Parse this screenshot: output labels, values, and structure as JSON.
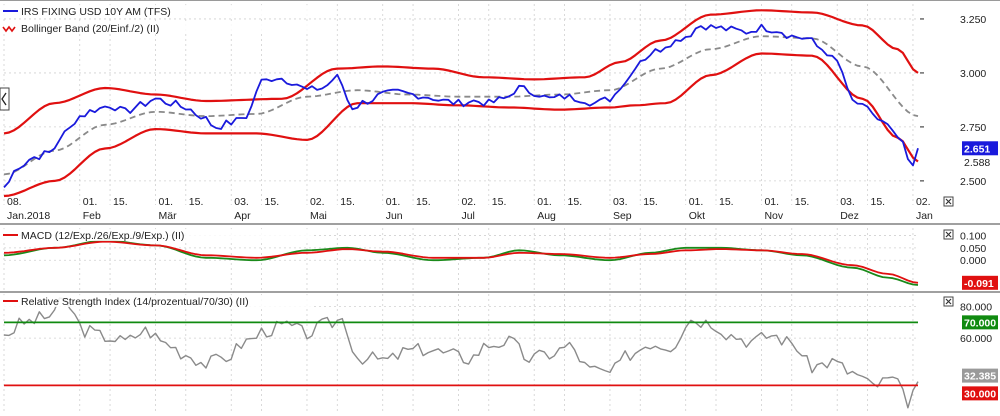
{
  "colors": {
    "background": "#ffffff",
    "grid": "#d0d0d0",
    "price": "#1a1adc",
    "band": "#e01010",
    "middle": "#8a8a8a",
    "macd": "#1a8a1a",
    "signal": "#e01010",
    "rsi": "#8a8a8a",
    "level_hi": "#108a10",
    "level_lo": "#e01010",
    "axis_text": "#222222",
    "panel_border": "#404040"
  },
  "icons": {
    "close": "close-icon",
    "collapse": "chevron-left-icon"
  },
  "chart_data": [
    {
      "type": "line",
      "panel": "price",
      "legend": [
        "IRS FIXING USD 10Y AM (TFS)",
        "Bollinger Band (20/Einf./2) (II)"
      ],
      "y_ticks": [
        "3.250",
        "3.000",
        "2.750",
        "2.500"
      ],
      "ylim": [
        2.43,
        3.31
      ],
      "x_ticks": [
        {
          "top": "08.",
          "bottom": "Jan.2018"
        },
        {
          "top": "01.",
          "bottom": "Feb"
        },
        {
          "top": "15.",
          "bottom": ""
        },
        {
          "top": "01.",
          "bottom": "Mär"
        },
        {
          "top": "15.",
          "bottom": ""
        },
        {
          "top": "03.",
          "bottom": "Apr"
        },
        {
          "top": "15.",
          "bottom": ""
        },
        {
          "top": "02.",
          "bottom": "Mai"
        },
        {
          "top": "15.",
          "bottom": ""
        },
        {
          "top": "01.",
          "bottom": "Jun"
        },
        {
          "top": "15.",
          "bottom": ""
        },
        {
          "top": "02.",
          "bottom": "Jul"
        },
        {
          "top": "15.",
          "bottom": ""
        },
        {
          "top": "01.",
          "bottom": "Aug"
        },
        {
          "top": "15.",
          "bottom": ""
        },
        {
          "top": "03.",
          "bottom": "Sep"
        },
        {
          "top": "15.",
          "bottom": ""
        },
        {
          "top": "01.",
          "bottom": "Okt"
        },
        {
          "top": "15.",
          "bottom": ""
        },
        {
          "top": "01.",
          "bottom": "Nov"
        },
        {
          "top": "15.",
          "bottom": ""
        },
        {
          "top": "03.",
          "bottom": "Dez"
        },
        {
          "top": "15.",
          "bottom": ""
        },
        {
          "top": "02.",
          "bottom": "Jan"
        }
      ],
      "x_positions": [
        0,
        15,
        21,
        30,
        36,
        45,
        51,
        60,
        66,
        75,
        81,
        90,
        96,
        105,
        111,
        120,
        126,
        135,
        141,
        150,
        156,
        165,
        171,
        180
      ],
      "n": 182,
      "series": [
        {
          "name": "IRS FIXING USD 10Y AM (TFS)",
          "anchors": [
            [
              0,
              2.47
            ],
            [
              3,
              2.57
            ],
            [
              6,
              2.61
            ],
            [
              9,
              2.63
            ],
            [
              12,
              2.72
            ],
            [
              15,
              2.8
            ],
            [
              18,
              2.83
            ],
            [
              21,
              2.85
            ],
            [
              24,
              2.82
            ],
            [
              27,
              2.85
            ],
            [
              30,
              2.88
            ],
            [
              33,
              2.86
            ],
            [
              36,
              2.84
            ],
            [
              39,
              2.8
            ],
            [
              42,
              2.75
            ],
            [
              45,
              2.77
            ],
            [
              48,
              2.8
            ],
            [
              51,
              2.96
            ],
            [
              54,
              2.98
            ],
            [
              57,
              2.96
            ],
            [
              60,
              2.92
            ],
            [
              63,
              2.93
            ],
            [
              66,
              2.98
            ],
            [
              69,
              2.84
            ],
            [
              72,
              2.87
            ],
            [
              75,
              2.9
            ],
            [
              78,
              2.91
            ],
            [
              81,
              2.9
            ],
            [
              84,
              2.89
            ],
            [
              87,
              2.87
            ],
            [
              90,
              2.86
            ],
            [
              93,
              2.87
            ],
            [
              96,
              2.86
            ],
            [
              99,
              2.88
            ],
            [
              102,
              2.93
            ],
            [
              105,
              2.91
            ],
            [
              108,
              2.88
            ],
            [
              111,
              2.89
            ],
            [
              114,
              2.88
            ],
            [
              117,
              2.86
            ],
            [
              120,
              2.88
            ],
            [
              123,
              2.96
            ],
            [
              126,
              3.06
            ],
            [
              129,
              3.1
            ],
            [
              132,
              3.14
            ],
            [
              135,
              3.17
            ],
            [
              138,
              3.22
            ],
            [
              141,
              3.21
            ],
            [
              144,
              3.2
            ],
            [
              147,
              3.19
            ],
            [
              150,
              3.21
            ],
            [
              153,
              3.2
            ],
            [
              156,
              3.17
            ],
            [
              159,
              3.16
            ],
            [
              162,
              3.11
            ],
            [
              165,
              3.05
            ],
            [
              168,
              2.87
            ],
            [
              171,
              2.83
            ],
            [
              174,
              2.77
            ],
            [
              177,
              2.7
            ],
            [
              180,
              2.56
            ],
            [
              181,
              2.651
            ]
          ],
          "last_value": "2.651"
        },
        {
          "name": "Bollinger Band (20/Einf./2) (II) upper",
          "anchors": [
            [
              0,
              2.72
            ],
            [
              10,
              2.86
            ],
            [
              20,
              2.93
            ],
            [
              30,
              2.9
            ],
            [
              40,
              2.87
            ],
            [
              55,
              2.88
            ],
            [
              66,
              3.02
            ],
            [
              75,
              3.03
            ],
            [
              85,
              3.02
            ],
            [
              95,
              2.98
            ],
            [
              105,
              2.97
            ],
            [
              115,
              2.98
            ],
            [
              122,
              3.05
            ],
            [
              130,
              3.15
            ],
            [
              140,
              3.27
            ],
            [
              150,
              3.29
            ],
            [
              160,
              3.28
            ],
            [
              170,
              3.22
            ],
            [
              177,
              3.11
            ],
            [
              181,
              3.0
            ]
          ]
        },
        {
          "name": "Bollinger Band (20/Einf./2) (II) middle",
          "anchors": [
            [
              0,
              2.53
            ],
            [
              10,
              2.64
            ],
            [
              20,
              2.76
            ],
            [
              30,
              2.82
            ],
            [
              40,
              2.8
            ],
            [
              50,
              2.81
            ],
            [
              60,
              2.89
            ],
            [
              70,
              2.92
            ],
            [
              80,
              2.9
            ],
            [
              90,
              2.89
            ],
            [
              100,
              2.89
            ],
            [
              110,
              2.9
            ],
            [
              120,
              2.92
            ],
            [
              130,
              3.02
            ],
            [
              140,
              3.11
            ],
            [
              150,
              3.17
            ],
            [
              160,
              3.16
            ],
            [
              170,
              3.03
            ],
            [
              181,
              2.8
            ]
          ]
        },
        {
          "name": "Bollinger Band (20/Einf./2) (II) lower",
          "anchors": [
            [
              0,
              2.43
            ],
            [
              10,
              2.5
            ],
            [
              20,
              2.65
            ],
            [
              30,
              2.74
            ],
            [
              40,
              2.72
            ],
            [
              50,
              2.72
            ],
            [
              60,
              2.69
            ],
            [
              70,
              2.86
            ],
            [
              80,
              2.86
            ],
            [
              90,
              2.85
            ],
            [
              100,
              2.84
            ],
            [
              110,
              2.83
            ],
            [
              120,
              2.84
            ],
            [
              125,
              2.85
            ],
            [
              131,
              2.86
            ],
            [
              140,
              2.99
            ],
            [
              150,
              3.09
            ],
            [
              160,
              3.08
            ],
            [
              170,
              2.88
            ],
            [
              177,
              2.7
            ],
            [
              181,
              2.59
            ]
          ],
          "last_value": "2.588"
        }
      ]
    },
    {
      "type": "line",
      "panel": "macd",
      "legend": [
        "MACD (12/Exp./26/Exp./9/Exp.) (II)"
      ],
      "y_ticks": [
        "0.100",
        "0.050",
        "0.000"
      ],
      "ylim": [
        -0.12,
        0.13
      ],
      "series": [
        {
          "name": "MACD",
          "anchors": [
            [
              0,
              0.02
            ],
            [
              10,
              0.05
            ],
            [
              20,
              0.08
            ],
            [
              30,
              0.06
            ],
            [
              40,
              0.01
            ],
            [
              50,
              0.0
            ],
            [
              60,
              0.04
            ],
            [
              68,
              0.05
            ],
            [
              75,
              0.03
            ],
            [
              85,
              0.0
            ],
            [
              95,
              0.01
            ],
            [
              102,
              0.04
            ],
            [
              110,
              0.02
            ],
            [
              120,
              0.0
            ],
            [
              128,
              0.03
            ],
            [
              135,
              0.05
            ],
            [
              142,
              0.05
            ],
            [
              150,
              0.04
            ],
            [
              158,
              0.02
            ],
            [
              168,
              -0.03
            ],
            [
              175,
              -0.07
            ],
            [
              181,
              -0.1
            ]
          ]
        },
        {
          "name": "Signal",
          "anchors": [
            [
              0,
              0.03
            ],
            [
              10,
              0.05
            ],
            [
              20,
              0.075
            ],
            [
              30,
              0.06
            ],
            [
              40,
              0.02
            ],
            [
              50,
              0.01
            ],
            [
              60,
              0.03
            ],
            [
              68,
              0.045
            ],
            [
              75,
              0.035
            ],
            [
              85,
              0.01
            ],
            [
              95,
              0.01
            ],
            [
              102,
              0.03
            ],
            [
              110,
              0.025
            ],
            [
              120,
              0.01
            ],
            [
              128,
              0.025
            ],
            [
              135,
              0.04
            ],
            [
              142,
              0.045
            ],
            [
              150,
              0.04
            ],
            [
              158,
              0.025
            ],
            [
              168,
              -0.02
            ],
            [
              175,
              -0.055
            ],
            [
              181,
              -0.091
            ]
          ],
          "last_value": "-0.091"
        }
      ]
    },
    {
      "type": "line",
      "panel": "rsi",
      "legend": [
        "Relative Strength Index (14/prozentual/70/30) (II)"
      ],
      "y_ticks": [
        "80.000",
        "60.000"
      ],
      "ylim": [
        15,
        88
      ],
      "levels": [
        {
          "value": 70,
          "label": "70.000",
          "color_key": "level_hi"
        },
        {
          "value": 30,
          "label": "30.000",
          "color_key": "level_lo"
        }
      ],
      "series": [
        {
          "name": "Relative Strength Index",
          "anchors": [
            [
              0,
              62
            ],
            [
              4,
              70
            ],
            [
              8,
              73
            ],
            [
              12,
              83
            ],
            [
              16,
              65
            ],
            [
              20,
              61
            ],
            [
              24,
              58
            ],
            [
              28,
              65
            ],
            [
              32,
              57
            ],
            [
              36,
              50
            ],
            [
              40,
              44
            ],
            [
              44,
              48
            ],
            [
              48,
              58
            ],
            [
              52,
              65
            ],
            [
              56,
              68
            ],
            [
              60,
              63
            ],
            [
              64,
              69
            ],
            [
              67,
              72
            ],
            [
              70,
              48
            ],
            [
              73,
              47
            ],
            [
              76,
              46
            ],
            [
              80,
              52
            ],
            [
              84,
              53
            ],
            [
              88,
              50
            ],
            [
              92,
              47
            ],
            [
              96,
              56
            ],
            [
              100,
              58
            ],
            [
              104,
              47
            ],
            [
              108,
              50
            ],
            [
              112,
              55
            ],
            [
              116,
              40
            ],
            [
              120,
              38
            ],
            [
              124,
              50
            ],
            [
              128,
              57
            ],
            [
              132,
              55
            ],
            [
              136,
              72
            ],
            [
              140,
              70
            ],
            [
              144,
              62
            ],
            [
              148,
              58
            ],
            [
              152,
              62
            ],
            [
              156,
              57
            ],
            [
              160,
              42
            ],
            [
              164,
              45
            ],
            [
              168,
              38
            ],
            [
              172,
              30
            ],
            [
              176,
              34
            ],
            [
              179,
              20
            ],
            [
              181,
              32.385
            ]
          ],
          "last_value": "32.385"
        }
      ]
    }
  ]
}
